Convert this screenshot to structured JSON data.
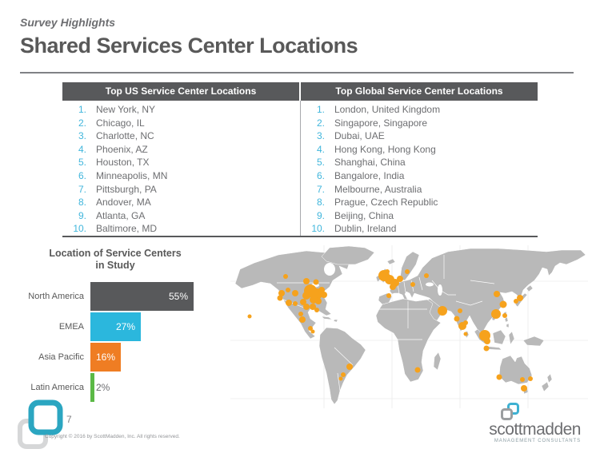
{
  "header": {
    "eyebrow": "Survey Highlights",
    "title": "Shared Services Center Locations"
  },
  "table": {
    "us": {
      "header": "Top US Service Center Locations",
      "items": [
        "New York, NY",
        "Chicago, IL",
        "Charlotte, NC",
        "Phoenix, AZ",
        "Houston, TX",
        "Minneapolis, MN",
        "Pittsburgh, PA",
        "Andover,  MA",
        "Atlanta, GA",
        "Baltimore, MD"
      ]
    },
    "global": {
      "header": "Top Global Service Center Locations",
      "items": [
        "London, United Kingdom",
        "Singapore, Singapore",
        "Dubai, UAE",
        "Hong Kong, Hong Kong",
        "Shanghai, China",
        "Bangalore, India",
        "Melbourne, Australia",
        "Prague, Czech Republic",
        "Beijing, China",
        "Dublin, Ireland"
      ]
    }
  },
  "chart_data": {
    "type": "bar",
    "orientation": "horizontal",
    "title": "Location of Service Centers in Study",
    "title_lines": [
      "Location of Service Centers",
      "in Study"
    ],
    "categories": [
      "North America",
      "EMEA",
      "Asia Pacific",
      "Latin America"
    ],
    "values": [
      55,
      27,
      16,
      2
    ],
    "labels": [
      "55%",
      "27%",
      "16%",
      "2%"
    ],
    "bar_colors": [
      "#58595b",
      "#2bb7dd",
      "#ef7d23",
      "#5bb946"
    ],
    "xlim": [
      0,
      60
    ],
    "grid": false,
    "legend": false,
    "value_labels": "inside-end"
  },
  "map": {
    "description": "World map with service center locations marked as orange dots",
    "land_color": "#b9b9b9",
    "dot_color": "#f6a21c",
    "grid_color": "#ebebeb",
    "dots": [
      [
        24,
        89,
        2.5
      ],
      [
        69,
        39,
        3
      ],
      [
        95,
        45,
        4
      ],
      [
        107,
        46,
        3.5
      ],
      [
        100,
        57,
        8
      ],
      [
        108,
        61,
        7
      ],
      [
        95,
        63,
        5
      ],
      [
        114,
        56,
        4
      ],
      [
        104,
        68,
        5
      ],
      [
        110,
        70,
        4
      ],
      [
        117,
        62,
        4
      ],
      [
        64,
        60,
        4
      ],
      [
        62,
        66,
        3.5
      ],
      [
        72,
        56,
        3
      ],
      [
        81,
        60,
        4
      ],
      [
        73,
        72,
        4
      ],
      [
        81,
        73,
        3
      ],
      [
        91,
        71,
        4
      ],
      [
        95,
        77,
        4
      ],
      [
        103,
        77,
        4
      ],
      [
        108,
        81,
        3
      ],
      [
        88,
        86,
        3
      ],
      [
        90,
        93,
        4
      ],
      [
        100,
        104,
        3
      ],
      [
        103,
        108,
        2.5
      ],
      [
        149,
        152,
        4
      ],
      [
        141,
        162,
        3
      ],
      [
        138,
        167,
        2.5
      ],
      [
        192,
        38,
        7
      ],
      [
        199,
        43,
        6
      ],
      [
        206,
        47,
        5
      ],
      [
        212,
        42,
        4
      ],
      [
        203,
        52,
        4
      ],
      [
        196,
        33,
        3
      ],
      [
        221,
        33,
        3
      ],
      [
        228,
        49,
        3
      ],
      [
        245,
        38,
        3
      ],
      [
        198,
        63,
        3
      ],
      [
        265,
        82,
        6
      ],
      [
        234,
        156,
        3.5
      ],
      [
        287,
        82,
        3
      ],
      [
        283,
        92,
        3.5
      ],
      [
        290,
        101,
        5
      ],
      [
        294,
        97,
        3
      ],
      [
        294,
        111,
        2.5
      ],
      [
        333,
        61,
        4
      ],
      [
        341,
        74,
        4.5
      ],
      [
        332,
        86,
        6
      ],
      [
        343,
        88,
        3
      ],
      [
        362,
        66,
        4
      ],
      [
        357,
        70,
        3
      ],
      [
        318,
        113,
        7
      ],
      [
        321,
        120,
        4
      ],
      [
        320,
        129,
        3.5
      ],
      [
        336,
        165,
        3.5
      ],
      [
        365,
        168,
        3
      ],
      [
        375,
        167,
        3
      ],
      [
        367,
        179,
        4
      ]
    ]
  },
  "footer": {
    "page_number": "7",
    "copyright": "Copyright © 2016 by ScottMadden, Inc. All rights reserved.",
    "brand": {
      "wordmark": "scottmadden",
      "tagline": "MANAGEMENT CONSULTANTS"
    }
  },
  "colors": {
    "header_bar": "#58595b",
    "body_text": "#6d6e71",
    "list_number": "#41b6dc",
    "title_text": "#595959",
    "rule": "#808285",
    "land_gray": "#b9b9b9",
    "dot_orange": "#f6a21c",
    "logo_teal": "#2ba6c1",
    "logo_light_gray": "#d6d7d8"
  }
}
